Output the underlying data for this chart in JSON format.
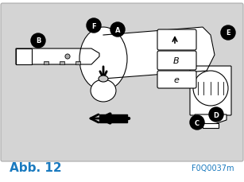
{
  "bg_color": "#d4d4d4",
  "border_color": "#ffffff",
  "bottom_bg": "#ffffff",
  "title_text": "Abb. 12",
  "title_color": "#1a7abf",
  "code_text": "F0Q0037m",
  "code_color": "#1a7abf",
  "label_bg": "#000000",
  "label_text_color": "#ffffff",
  "labels": [
    "A",
    "B",
    "C",
    "D",
    "E",
    "F"
  ],
  "figsize": [
    3.07,
    2.3
  ],
  "dpi": 100
}
